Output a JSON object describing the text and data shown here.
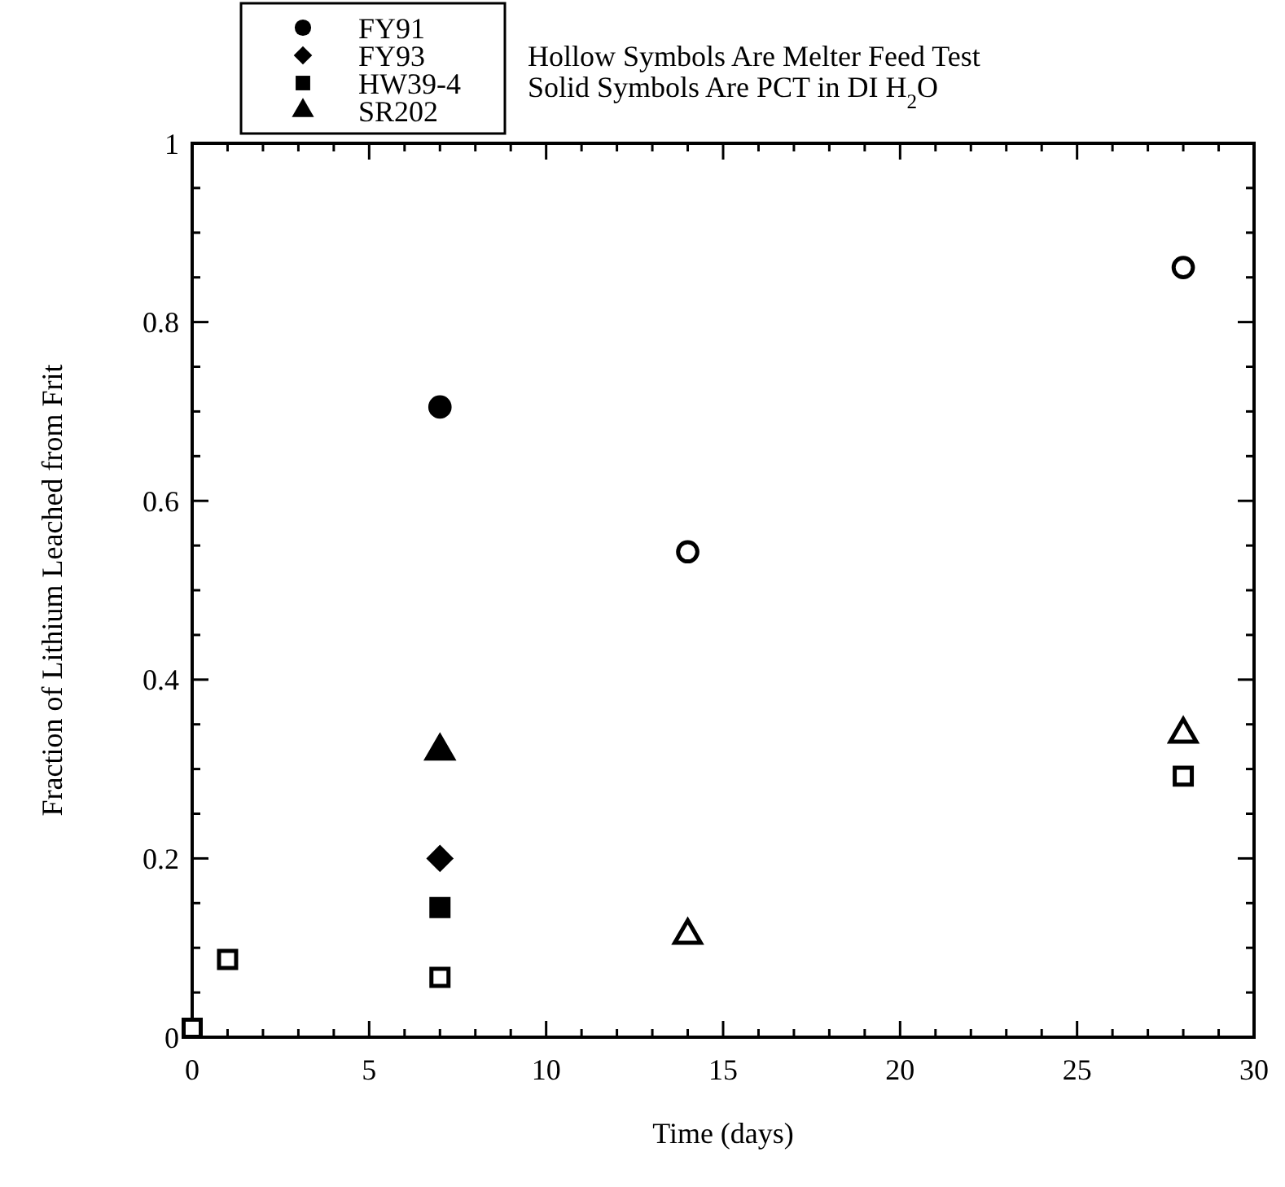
{
  "chart_data": {
    "type": "scatter",
    "xlabel": "Time (days)",
    "ylabel": "Fraction of Lithium Leached from Frit",
    "xlim": [
      0,
      30
    ],
    "ylim": [
      0,
      1
    ],
    "xticks": [
      0,
      {
        "value": 1,
        "label": null
      },
      {
        "value": 2,
        "label": null
      },
      {
        "value": 3,
        "label": null
      },
      {
        "value": 4,
        "label": null
      },
      5,
      {
        "value": 6,
        "label": null
      },
      {
        "value": 7,
        "label": null
      },
      {
        "value": 8,
        "label": null
      },
      {
        "value": 9,
        "label": null
      },
      10,
      {
        "value": 11,
        "label": null
      },
      {
        "value": 12,
        "label": null
      },
      {
        "value": 13,
        "label": null
      },
      {
        "value": 14,
        "label": null
      },
      15,
      {
        "value": 16,
        "label": null
      },
      {
        "value": 17,
        "label": null
      },
      {
        "value": 18,
        "label": null
      },
      {
        "value": 19,
        "label": null
      },
      20,
      {
        "value": 21,
        "label": null
      },
      {
        "value": 22,
        "label": null
      },
      {
        "value": 23,
        "label": null
      },
      {
        "value": 24,
        "label": null
      },
      25,
      {
        "value": 26,
        "label": null
      },
      {
        "value": 27,
        "label": null
      },
      {
        "value": 28,
        "label": null
      },
      {
        "value": 29,
        "label": null
      },
      30
    ],
    "yticks": [
      0,
      {
        "value": 0.05,
        "label": null
      },
      {
        "value": 0.1,
        "label": null
      },
      {
        "value": 0.15,
        "label": null
      },
      0.2,
      {
        "value": 0.25,
        "label": null
      },
      {
        "value": 0.3,
        "label": null
      },
      {
        "value": 0.35,
        "label": null
      },
      0.4,
      {
        "value": 0.45,
        "label": null
      },
      {
        "value": 0.5,
        "label": null
      },
      {
        "value": 0.55,
        "label": null
      },
      0.6,
      {
        "value": 0.65,
        "label": null
      },
      {
        "value": 0.7,
        "label": null
      },
      {
        "value": 0.75,
        "label": null
      },
      0.8,
      {
        "value": 0.85,
        "label": null
      },
      {
        "value": 0.9,
        "label": null
      },
      {
        "value": 0.95,
        "label": null
      },
      1
    ],
    "grid": false,
    "legend": "top left",
    "annotations": [
      "Hollow Symbols Are Melter Feed Test",
      "Solid Symbols Are PCT in DI H$_{2}$O"
    ],
    "series": [
      {
        "name": "FY91",
        "color": "#000000",
        "marker": "circle",
        "x": [
          7
        ],
        "values": [
          0.705
        ]
      },
      {
        "name": "FY93",
        "color": "#000000",
        "marker": "diamond",
        "x": [
          7
        ],
        "values": [
          0.2
        ]
      },
      {
        "name": "HW39-4",
        "color": "#000000",
        "marker": "square",
        "x": [
          7
        ],
        "values": [
          0.145
        ]
      },
      {
        "name": "SR202",
        "color": "#000000",
        "marker": "triangle",
        "x": [
          7
        ],
        "values": [
          0.32
        ]
      },
      {
        "color": "#000000",
        "marker": "circle",
        "x": [
          14,
          28
        ],
        "values": [
          0.543,
          0.861
        ]
      },
      {
        "color": "#000000",
        "marker": "square",
        "x": [
          0,
          1,
          7,
          28
        ],
        "values": [
          0.01,
          0.087,
          0.067,
          0.292
        ]
      },
      {
        "color": "#000000",
        "marker": "triangle",
        "x": [
          14,
          28
        ],
        "values": [
          0.114,
          0.339
        ]
      }
    ]
  }
}
